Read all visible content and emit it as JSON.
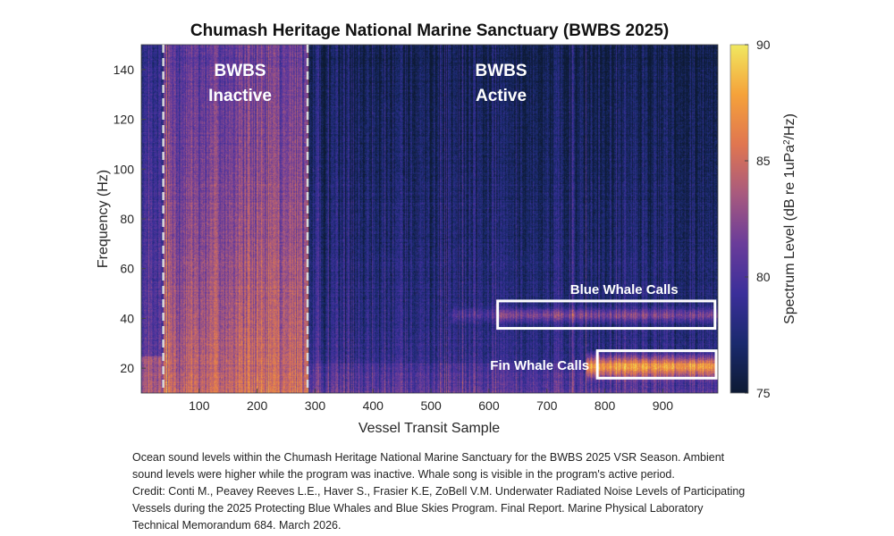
{
  "chart_data": {
    "type": "heatmap",
    "title": "Chumash Heritage National Marine Sanctuary (BWBS 2025)",
    "xlabel": "Vessel Transit Sample",
    "ylabel": "Frequency (Hz)",
    "xlim": [
      0,
      995
    ],
    "ylim": [
      10,
      150
    ],
    "xticks": [
      100,
      200,
      300,
      400,
      500,
      600,
      700,
      800,
      900
    ],
    "yticks": [
      20,
      40,
      60,
      80,
      100,
      120,
      140
    ],
    "colorbar": {
      "label": "Spectrum Level (dB re 1uPa²/Hz)",
      "label_main": "Spectrum Level (dB re 1uPa",
      "label_sup": "2",
      "label_end": "/Hz)",
      "range": [
        75,
        90
      ],
      "ticks": [
        75,
        80,
        85,
        90
      ],
      "colormap": [
        "#0d1a33",
        "#1a2a6e",
        "#3b2f9a",
        "#6a3c9a",
        "#a85a7e",
        "#e07650",
        "#f5a23a",
        "#f0e860"
      ]
    },
    "regions": [
      {
        "label_lines": [
          "BWBS",
          "Inactive"
        ],
        "start_sample": 38,
        "end_sample": 287,
        "level_low_freq_db": 85,
        "level_high_freq_db": 81
      },
      {
        "label_lines": [
          "BWBS",
          "Active"
        ],
        "start_sample": 287,
        "end_sample": 995,
        "level_low_freq_db": 80,
        "level_high_freq_db": 76.5
      }
    ],
    "boundaries": [
      38,
      287
    ],
    "annotations": [
      {
        "label": "Blue Whale Calls",
        "sample_range": [
          615,
          990
        ],
        "freq_range": [
          36,
          47
        ],
        "level_db": 85
      },
      {
        "label": "Fin Whale Calls",
        "sample_range": [
          787,
          992
        ],
        "freq_range": [
          16,
          27
        ],
        "level_db": 89
      }
    ]
  },
  "caption": {
    "lines": [
      "Ocean sound levels within the Chumash Heritage National Marine Sanctuary for the BWBS 2025 VSR Season. Ambient",
      "sound levels were higher while the program was inactive. Whale song is visible in the program's active period.",
      "Credit: Conti M., Peavey Reeves L.E., Haver S., Frasier K.E, ZoBell V.M. Underwater Radiated Noise Levels of Participating",
      "Vessels during the 2025 Protecting Blue Whales and Blue Skies Program. Final Report. Marine Physical Laboratory",
      "Technical Memorandum 684. March 2026."
    ]
  }
}
